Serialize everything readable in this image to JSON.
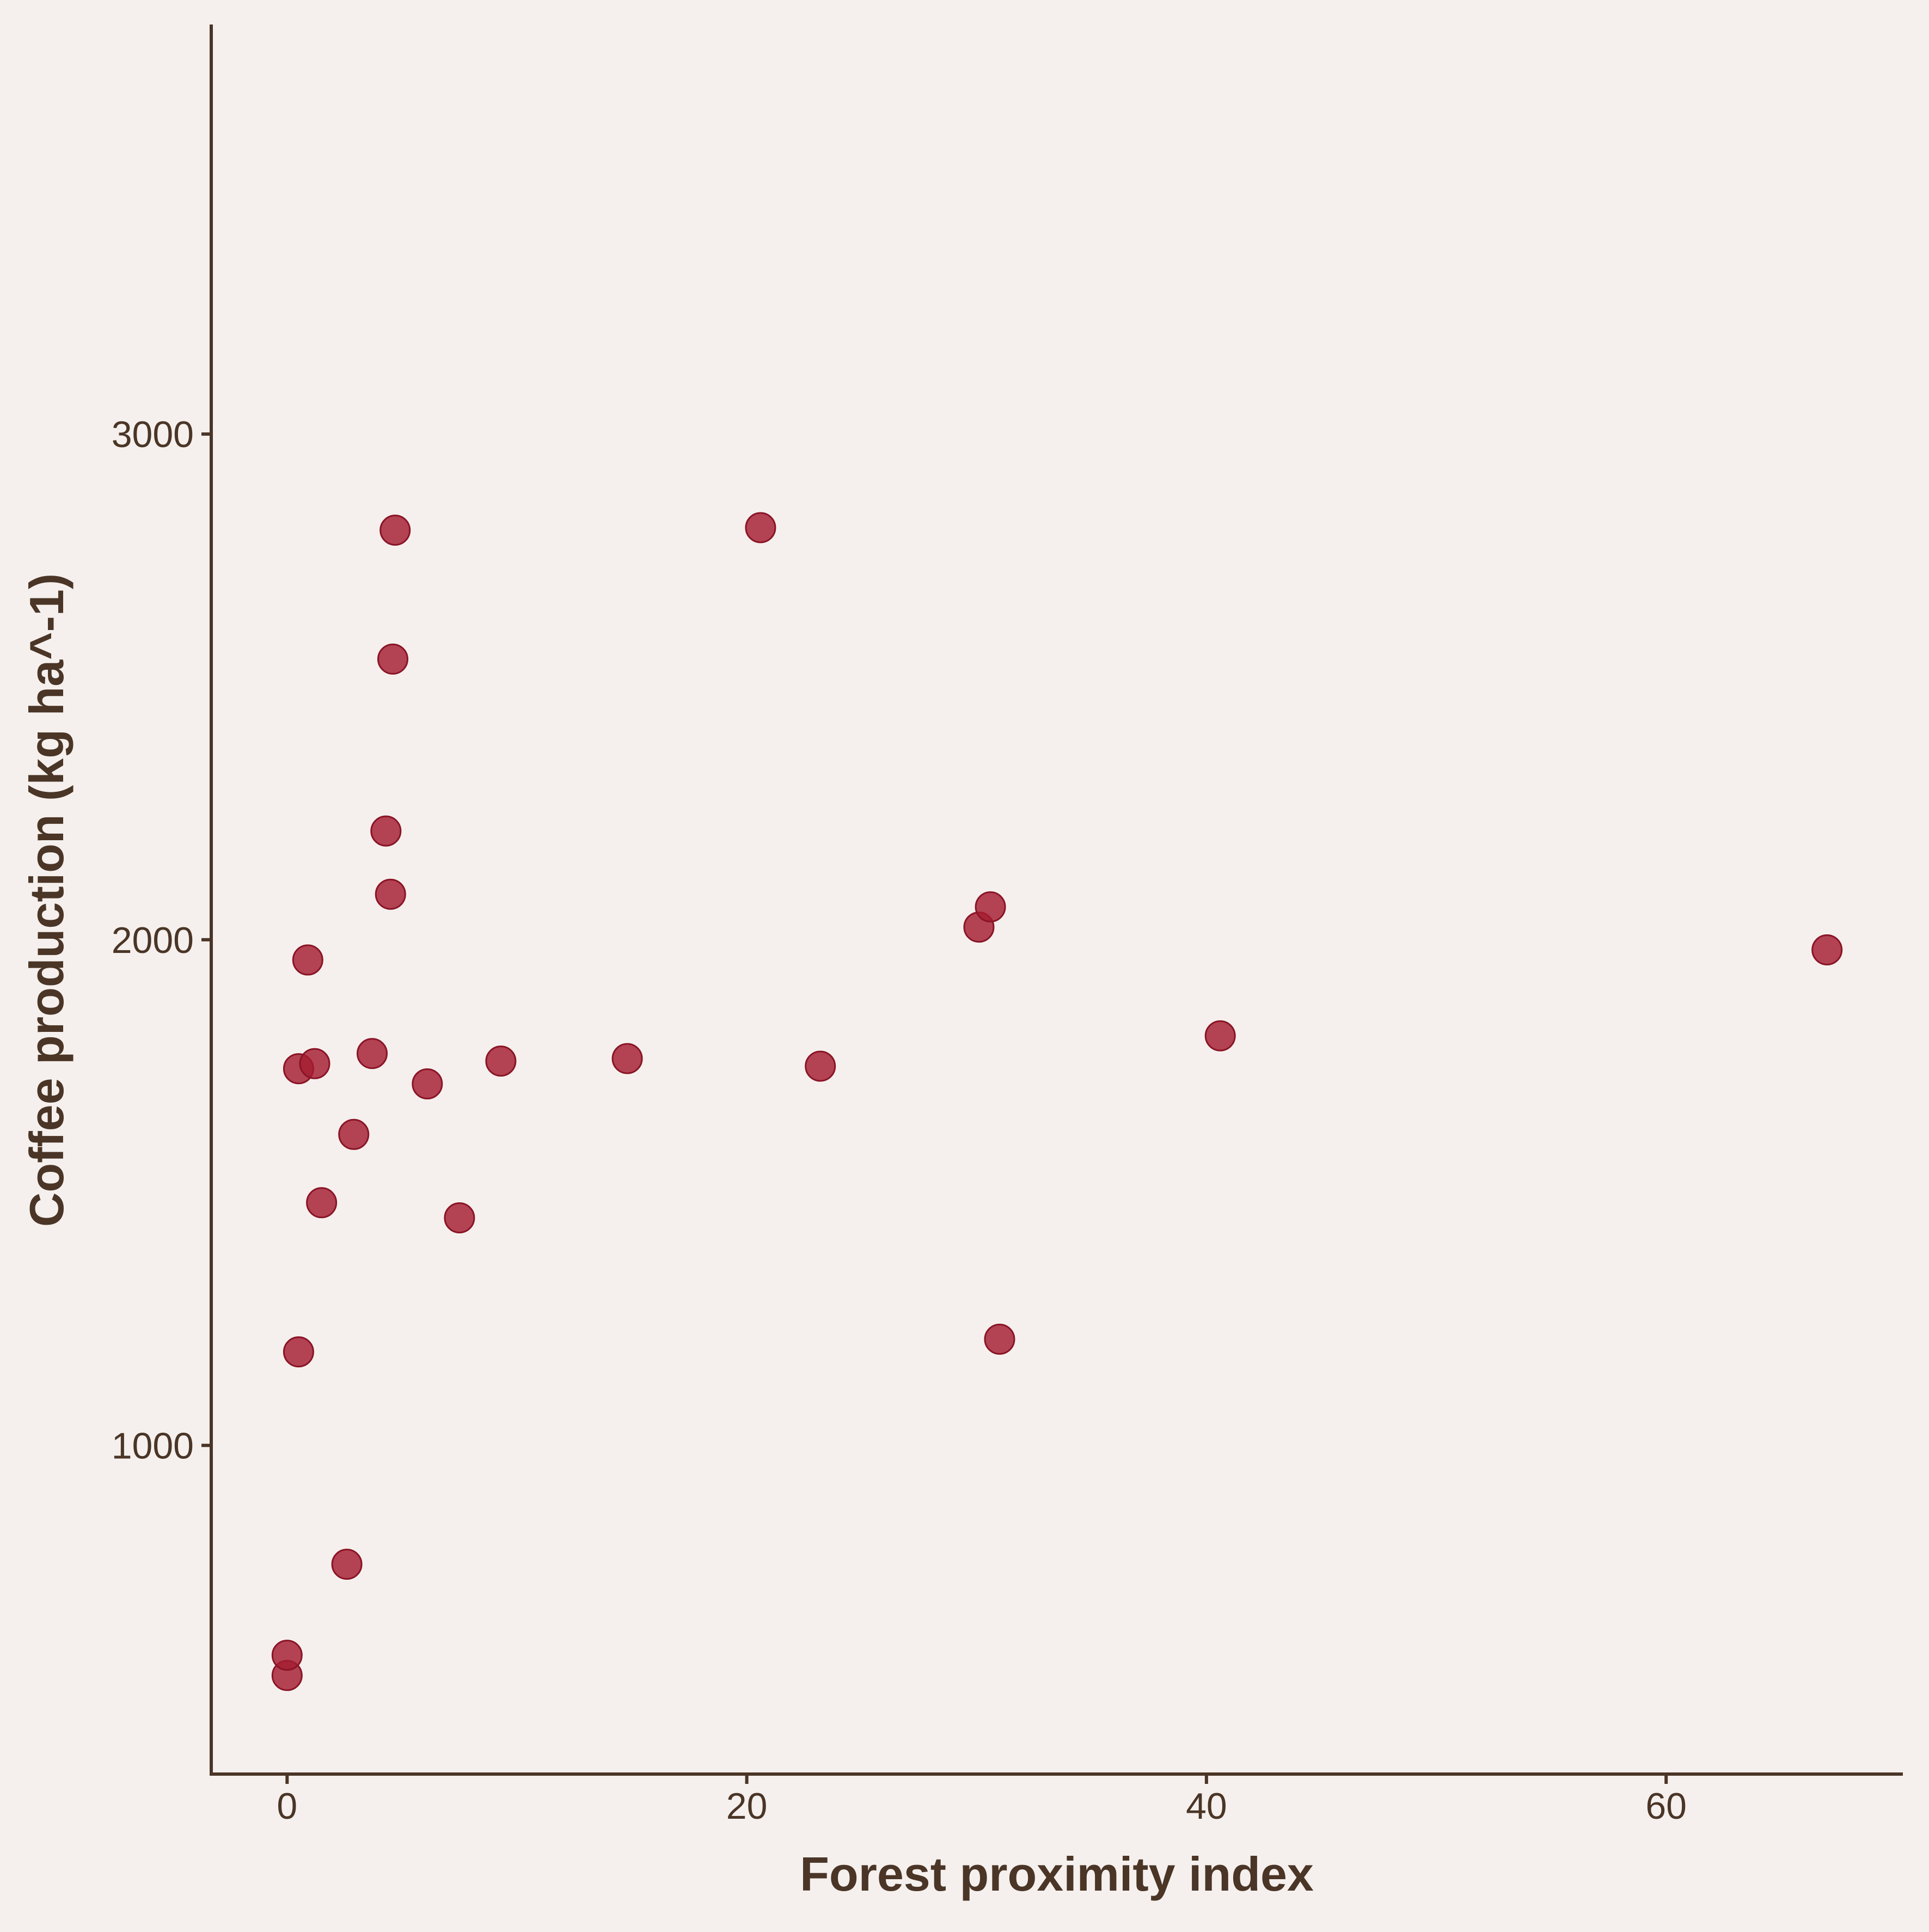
{
  "colors": {
    "background": "#f5f0ed",
    "axis": "#4a3526",
    "point": "#a51c30"
  },
  "chart_data": {
    "type": "scatter",
    "title": "",
    "xlabel": "Forest proximity index",
    "ylabel": "Coffee production (kg ha^-1)",
    "xlim": [
      -3.3,
      70.3
    ],
    "ylim": [
      350,
      3810
    ],
    "x_ticks": [
      0,
      20,
      40,
      60
    ],
    "x_tick_labels": [
      "0",
      "20",
      "40",
      "60"
    ],
    "y_ticks": [
      1000,
      2000,
      3000
    ],
    "y_tick_labels": [
      "1000",
      "2000",
      "3000"
    ],
    "grid": false,
    "legend": "none",
    "series": [
      {
        "x": [
          0.0,
          0.0,
          0.5,
          0.5,
          0.9,
          1.2,
          1.5,
          2.6,
          2.9,
          3.7,
          4.3,
          4.5,
          4.6,
          4.7,
          6.1,
          7.5,
          9.3,
          14.8,
          20.6,
          23.2,
          30.1,
          30.6,
          31.0,
          40.6,
          67.0
        ],
        "y": [
          545,
          585,
          1185,
          1745,
          1960,
          1755,
          1480,
          765,
          1615,
          1775,
          2215,
          2090,
          2555,
          2810,
          1715,
          1450,
          1760,
          1765,
          2815,
          1750,
          2025,
          2065,
          1210,
          1810,
          1980
        ]
      }
    ]
  }
}
